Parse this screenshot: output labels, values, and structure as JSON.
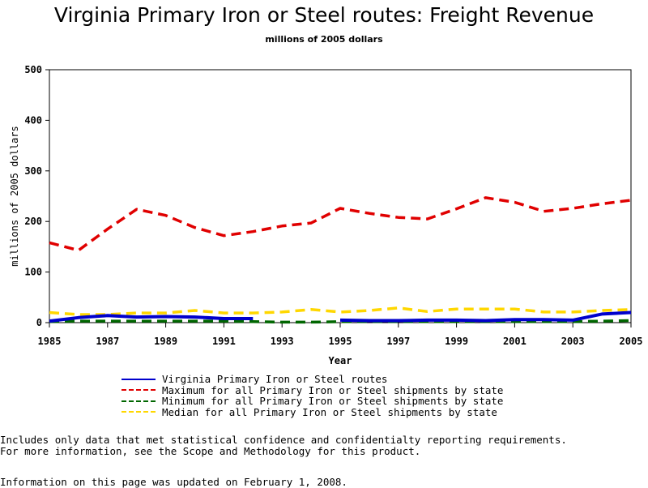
{
  "chart_data": {
    "type": "line",
    "title": "Virginia Primary Iron or Steel routes: Freight Revenue",
    "subtitle": "millions of 2005 dollars",
    "xlabel": "Year",
    "ylabel": "millions of 2005 dollars",
    "xlim": [
      1985,
      2005
    ],
    "ylim": [
      0,
      500
    ],
    "x_ticks": [
      "1985",
      "1987",
      "1989",
      "1991",
      "1993",
      "1995",
      "1997",
      "1999",
      "2001",
      "2003",
      "2005"
    ],
    "y_ticks": [
      "0",
      "100",
      "200",
      "300",
      "400",
      "500"
    ],
    "x": [
      1985,
      1986,
      1987,
      1988,
      1989,
      1990,
      1991,
      1992,
      1993,
      1994,
      1995,
      1996,
      1997,
      1998,
      1999,
      2000,
      2001,
      2002,
      2003,
      2004,
      2005
    ],
    "series": [
      {
        "name": "Virginia Primary Iron or Steel routes",
        "color": "#0000cc",
        "style": "solid",
        "values": [
          3,
          10,
          14,
          11,
          12,
          11,
          8,
          8,
          null,
          null,
          5,
          4,
          4,
          5,
          5,
          4,
          6,
          6,
          5,
          17,
          20
        ]
      },
      {
        "name": "Maximum for all Primary Iron or Steel shipments by state",
        "color": "#e00000",
        "style": "dashed",
        "values": [
          158,
          143,
          185,
          224,
          212,
          188,
          172,
          180,
          191,
          197,
          226,
          216,
          208,
          205,
          225,
          247,
          238,
          220,
          226,
          235,
          242
        ]
      },
      {
        "name": "Minimum for all Primary Iron or Steel shipments by state",
        "color": "#006600",
        "style": "dashed",
        "values": [
          2,
          3,
          3,
          3,
          3,
          3,
          3,
          2,
          1,
          1,
          2,
          2,
          2,
          2,
          2,
          2,
          2,
          2,
          2,
          3,
          4
        ]
      },
      {
        "name": "Median for all Primary Iron or Steel shipments by state",
        "color": "#ffd700",
        "style": "dashed",
        "values": [
          20,
          16,
          16,
          19,
          19,
          24,
          19,
          19,
          21,
          26,
          21,
          24,
          29,
          22,
          27,
          27,
          27,
          21,
          21,
          24,
          26
        ]
      }
    ]
  },
  "notes": {
    "line1": "Includes only data that met statistical confidence and confidentialty reporting requirements.",
    "line2": "For more information, see the Scope and Methodology for this product.",
    "updated": "Information on this page was updated on February 1, 2008."
  }
}
